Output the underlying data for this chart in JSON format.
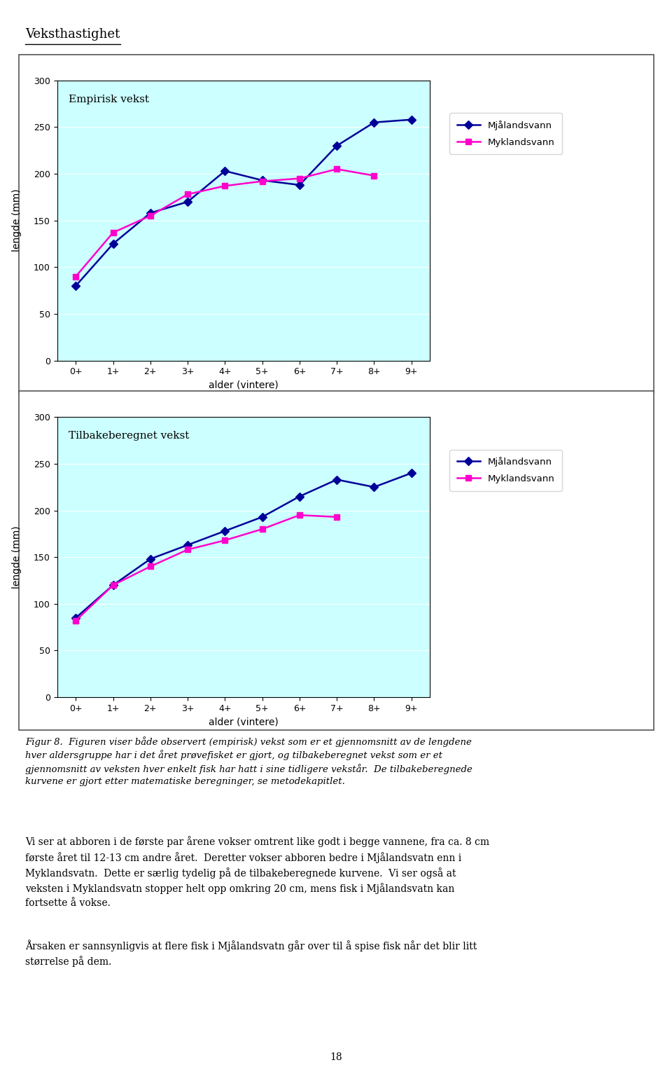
{
  "title": "Veksthastighet",
  "chart1_title": "Empirisk vekst",
  "chart2_title": "Tilbakeberegnet vekst",
  "xlabel": "alder (vintere)",
  "ylabel": "lengde (mm)",
  "xtick_labels": [
    "0+",
    "1+",
    "2+",
    "3+",
    "4+",
    "5+",
    "6+",
    "7+",
    "8+",
    "9+"
  ],
  "ylim": [
    0,
    300
  ],
  "yticks": [
    0,
    50,
    100,
    150,
    200,
    250,
    300
  ],
  "legend_label1": "Mjålandsvann",
  "legend_label2": "Myklandsvann",
  "color1": "#000099",
  "color2": "#FF00CC",
  "plot_bg": "#CCFFFF",
  "empirisk_mjalandsvann": [
    80,
    125,
    158,
    170,
    203,
    193,
    188,
    230,
    255,
    258
  ],
  "empirisk_myklandsvann": [
    90,
    137,
    155,
    178,
    187,
    192,
    195,
    205,
    198,
    null
  ],
  "tilbake_mjalandsvann": [
    85,
    120,
    148,
    163,
    178,
    193,
    215,
    233,
    225,
    240
  ],
  "tilbake_myklandsvann": [
    82,
    120,
    140,
    158,
    168,
    180,
    195,
    193,
    null,
    null
  ],
  "fig_caption": "Figur 8.  Figuren viser både observert (empirisk) vekst som er et gjennomsnitt av de lengdene\nhver aldersgruppe har i det året prøvefisket er gjort, og tilbakeberegnet vekst som er et\ngjennomsnitt av veksten hver enkelt fisk har hatt i sine tidligere vekstår.  De tilbakeberegnede\nkurvene er gjort etter matematiske beregninger, se metodekapitlet.",
  "para1": "Vi ser at abboren i de første par årene vokser omtrent like godt i begge vannene, fra ca. 8 cm\nførste året til 12-13 cm andre året.  Deretter vokser abboren bedre i Mjålandsvatn enn i\nMyklandsvatn.  Dette er særlig tydelig på de tilbakeberegnede kurvene.  Vi ser også at\nveksten i Myklandsvatn stopper helt opp omkring 20 cm, mens fisk i Mjålandsvatn kan\nfortsette å vokse.",
  "para2": "Årsaken er sannsynligvis at flere fisk i Mjålandsvatn går over til å spise fisk når det blir litt\nstørrelse på dem.",
  "page_number": "18"
}
